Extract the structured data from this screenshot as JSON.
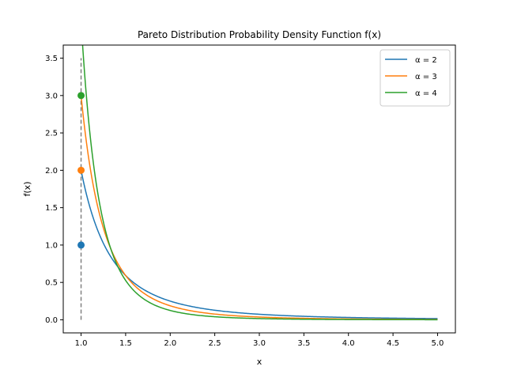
{
  "chart_data": {
    "type": "line",
    "title": "Pareto Distribution Probability Density Function f(x)",
    "xlabel": "x",
    "ylabel": "f(x)",
    "xlim": [
      0.8,
      5.2
    ],
    "ylim": [
      -0.175,
      3.675
    ],
    "xticks": [
      "1.0",
      "1.5",
      "2.0",
      "2.5",
      "3.0",
      "3.5",
      "4.0",
      "4.5",
      "5.0"
    ],
    "yticks": [
      "0.0",
      "0.5",
      "1.0",
      "1.5",
      "2.0",
      "2.5",
      "3.0",
      "3.5"
    ],
    "grid": false,
    "legend_position": "top-right",
    "x_min": 1.0,
    "x_max": 5.0,
    "series": [
      {
        "name": "α = 2",
        "alpha": 2,
        "color": "#1f77b4",
        "x": [
          1.0,
          1.25,
          1.5,
          2.0,
          2.5,
          3.0,
          3.5,
          4.0,
          4.5,
          5.0
        ],
        "values": [
          2.0,
          1.024,
          0.593,
          0.25,
          0.128,
          0.074,
          0.047,
          0.031,
          0.022,
          0.016
        ],
        "marker_point": [
          1.0,
          1.0
        ]
      },
      {
        "name": "α = 3",
        "alpha": 3,
        "color": "#ff7f0e",
        "x": [
          1.0,
          1.25,
          1.5,
          2.0,
          2.5,
          3.0,
          3.5,
          4.0,
          4.5,
          5.0
        ],
        "values": [
          3.0,
          1.229,
          0.593,
          0.188,
          0.077,
          0.037,
          0.02,
          0.012,
          0.007,
          0.005
        ],
        "marker_point": [
          1.0,
          2.0
        ]
      },
      {
        "name": "α = 4",
        "alpha": 4,
        "color": "#2ca02c",
        "x": [
          1.0,
          1.25,
          1.5,
          2.0,
          2.5,
          3.0,
          3.5,
          4.0,
          4.5,
          5.0
        ],
        "values": [
          4.0,
          1.311,
          0.527,
          0.125,
          0.041,
          0.016,
          0.008,
          0.004,
          0.002,
          0.001
        ],
        "marker_point": [
          1.0,
          3.0
        ]
      }
    ],
    "reference_line": {
      "x": 1.0,
      "y_from": 0.0,
      "y_to": 3.5,
      "color": "#808080",
      "style": "dashed"
    }
  }
}
